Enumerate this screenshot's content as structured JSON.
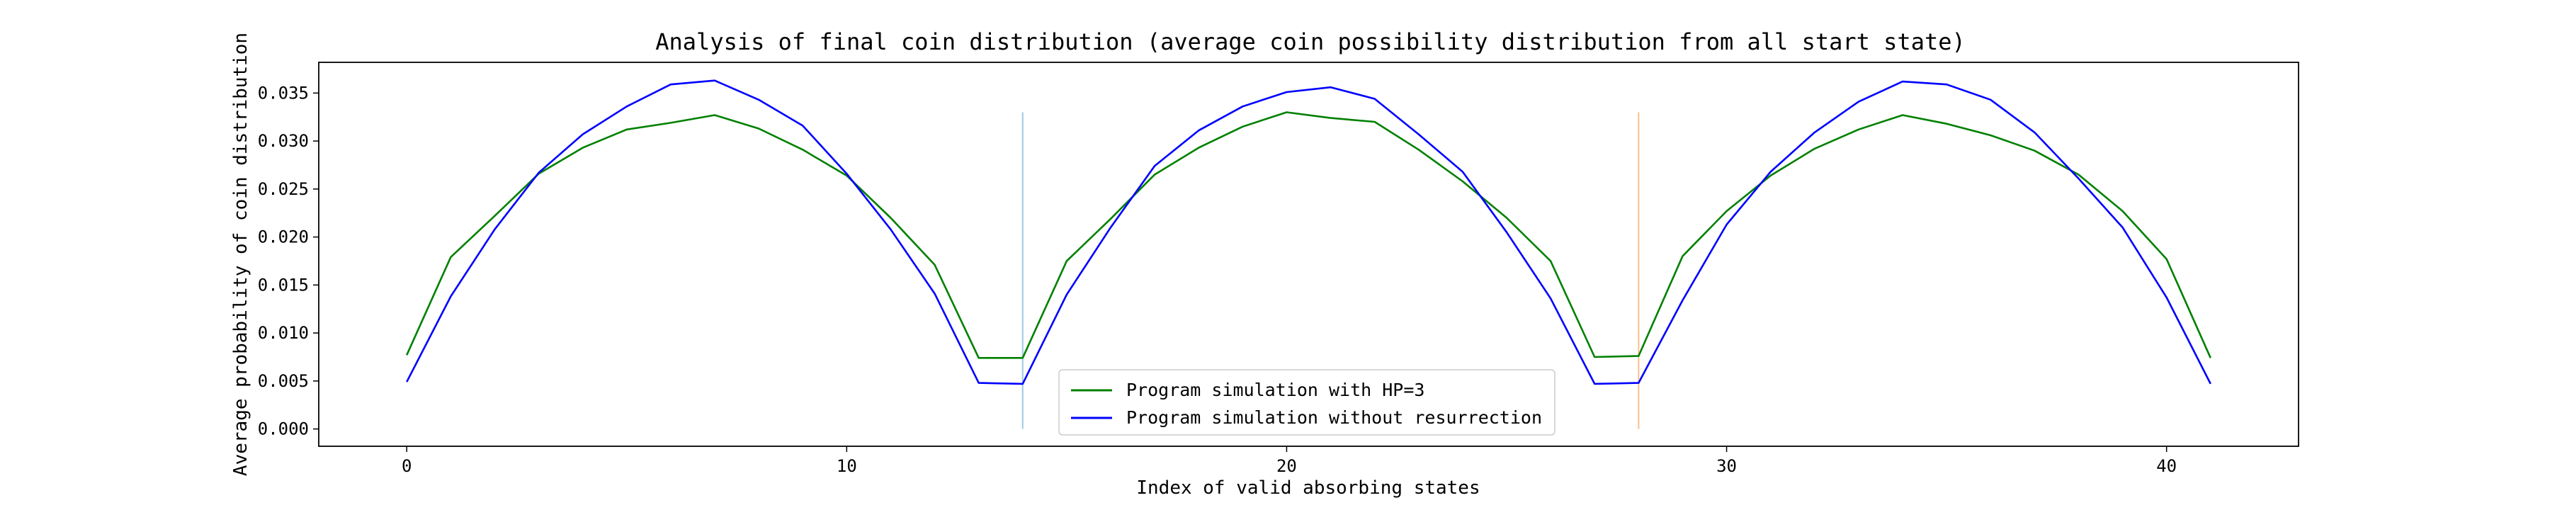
{
  "chart_data": {
    "type": "line",
    "title": "Analysis of final coin distribution (average coin possibility distribution from all start state)",
    "xlabel": "Index of valid absorbing states",
    "ylabel": "Average probability of coin distribution",
    "xlim": [
      -2,
      43
    ],
    "ylim": [
      -0.0018,
      0.0382
    ],
    "xticks": [
      0,
      10,
      20,
      30,
      40
    ],
    "yticks": [
      0.0,
      0.005,
      0.01,
      0.015,
      0.02,
      0.025,
      0.03,
      0.035
    ],
    "ytick_labels": [
      "0.000",
      "0.005",
      "0.010",
      "0.015",
      "0.020",
      "0.025",
      "0.030",
      "0.035"
    ],
    "grid": false,
    "legend": "lower-center",
    "vlines": [
      {
        "x": 14,
        "y": [
          0.0,
          0.033
        ],
        "color": "#9ecae1"
      },
      {
        "x": 28,
        "y": [
          0.0,
          0.033
        ],
        "color": "#fdbf8f"
      }
    ],
    "series": [
      {
        "name": "Program simulation with HP=3",
        "color": "#008000",
        "x": [
          0,
          1,
          2,
          3,
          4,
          5,
          6,
          7,
          8,
          9,
          10,
          11,
          12,
          13,
          14,
          15,
          16,
          17,
          18,
          19,
          20,
          21,
          22,
          23,
          24,
          25,
          26,
          27,
          28,
          29,
          30,
          31,
          32,
          33,
          34,
          35,
          36,
          37,
          38,
          39,
          40,
          41
        ],
        "values": [
          0.0077,
          0.0179,
          0.0222,
          0.0266,
          0.0293,
          0.0312,
          0.0319,
          0.0327,
          0.0313,
          0.0291,
          0.0264,
          0.022,
          0.0171,
          0.0074,
          0.0074,
          0.0175,
          0.0219,
          0.0265,
          0.0293,
          0.0315,
          0.033,
          0.0324,
          0.032,
          0.0291,
          0.0258,
          0.022,
          0.0175,
          0.0075,
          0.0076,
          0.018,
          0.0227,
          0.0264,
          0.0292,
          0.0312,
          0.0327,
          0.0318,
          0.0306,
          0.029,
          0.0265,
          0.0227,
          0.0177,
          0.0074
        ]
      },
      {
        "name": "Program simulation without resurrection",
        "color": "#0000ff",
        "x": [
          0,
          1,
          2,
          3,
          4,
          5,
          6,
          7,
          8,
          9,
          10,
          11,
          12,
          13,
          14,
          15,
          16,
          17,
          18,
          19,
          20,
          21,
          22,
          23,
          24,
          25,
          26,
          27,
          28,
          29,
          30,
          31,
          32,
          33,
          34,
          35,
          36,
          37,
          38,
          39,
          40,
          41
        ],
        "values": [
          0.0049,
          0.0138,
          0.0208,
          0.0267,
          0.0307,
          0.0336,
          0.0359,
          0.0363,
          0.0343,
          0.0316,
          0.0266,
          0.0208,
          0.0141,
          0.0048,
          0.0047,
          0.014,
          0.021,
          0.0274,
          0.0311,
          0.0336,
          0.0351,
          0.0356,
          0.0344,
          0.0307,
          0.0268,
          0.0205,
          0.0136,
          0.0047,
          0.0048,
          0.0134,
          0.0213,
          0.0268,
          0.0309,
          0.0341,
          0.0362,
          0.0359,
          0.0343,
          0.0309,
          0.0261,
          0.021,
          0.0137,
          0.0047
        ]
      }
    ]
  }
}
